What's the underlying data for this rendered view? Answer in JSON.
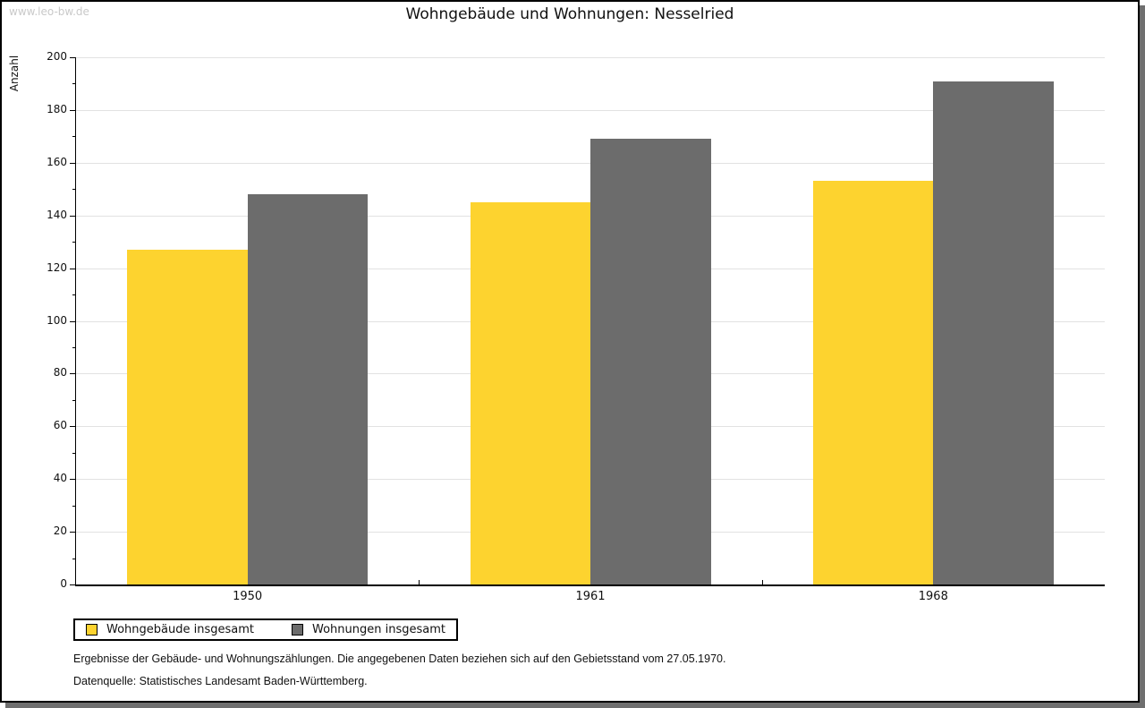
{
  "watermark": "www.leo-bw.de",
  "title": "Wohngebäude und Wohnungen: Nesselried",
  "chart_data": {
    "type": "bar",
    "title": "Wohngebäude und Wohnungen: Nesselried",
    "categories": [
      "1950",
      "1961",
      "1968"
    ],
    "series": [
      {
        "name": "Wohngebäude insgesamt",
        "color": "#fdd32f",
        "values": [
          127,
          145,
          153
        ]
      },
      {
        "name": "Wohnungen insgesamt",
        "color": "#6c6c6c",
        "values": [
          148,
          169,
          191
        ]
      }
    ],
    "xlabel": "",
    "ylabel": "Anzahl",
    "ylim": [
      0,
      200
    ],
    "y_major_step": 20,
    "y_minor_step": 10,
    "grid": true,
    "legend_position": "bottom-left",
    "gridline_color": "#e2e2e2"
  },
  "footer": {
    "note1": "Ergebnisse der Gebäude- und Wohnungszählungen. Die angegebenen Daten beziehen sich auf den Gebietsstand vom 27.05.1970.",
    "note2": "Datenquelle: Statistisches Landesamt Baden-Württemberg."
  }
}
